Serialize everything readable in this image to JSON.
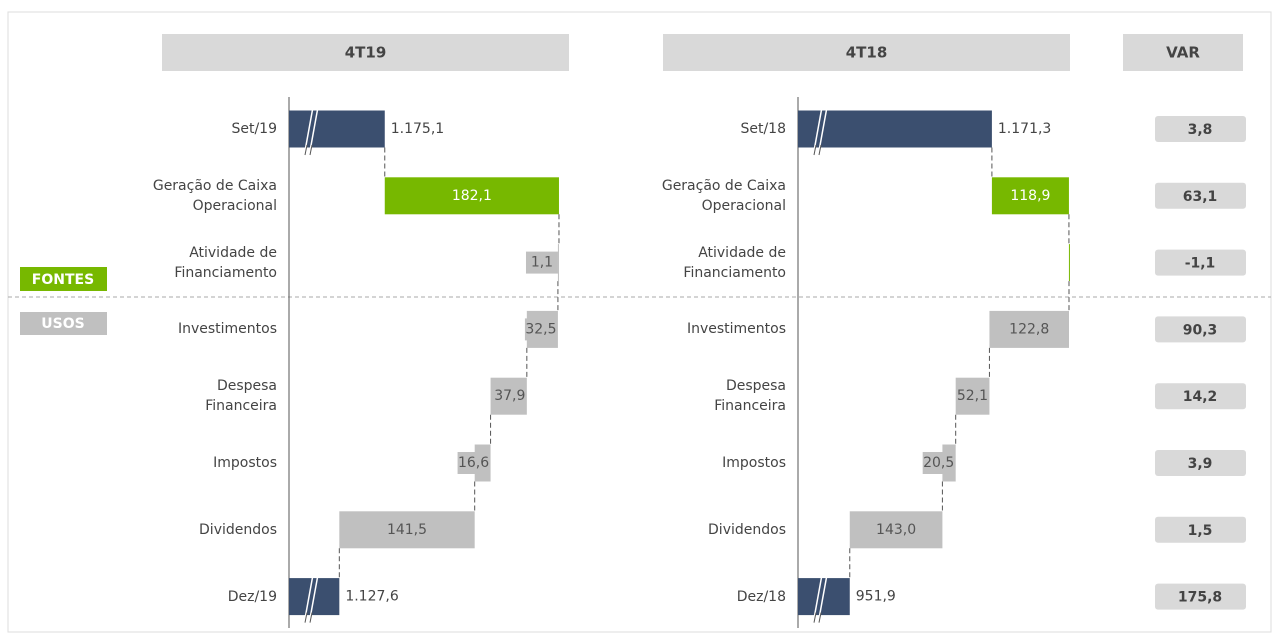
{
  "chart_data": [
    {
      "type": "waterfall",
      "title": "4T19",
      "categories": [
        "Set/19",
        "Geração de Caixa\nOperacional",
        "Atividade de\nFinanciamento",
        "Investimentos",
        "Despesa\nFinanceira",
        "Impostos",
        "Dividendos",
        "Dez/19"
      ],
      "values": [
        1175.1,
        182.1,
        1.1,
        32.5,
        37.9,
        16.6,
        141.5,
        1127.6
      ],
      "value_labels": [
        "1.175,1",
        "182,1",
        "1,1",
        "32,5",
        "37,9",
        "16,6",
        "141,5",
        "1.127,6"
      ],
      "measures": [
        "total",
        "increase",
        "decrease",
        "decrease",
        "decrease",
        "decrease",
        "decrease",
        "total"
      ],
      "colors": {
        "total": "#3b4f6f",
        "increase": "#77b800",
        "decrease": "#c0c0c0"
      },
      "xlim": [
        1075,
        1375
      ]
    },
    {
      "type": "waterfall",
      "title": "4T18",
      "categories": [
        "Set/18",
        "Geração de Caixa\nOperacional",
        "Atividade de\nFinanciamento",
        "Investimentos",
        "Despesa\nFinanceira",
        "Impostos",
        "Dividendos",
        "Dez/18"
      ],
      "values": [
        1171.3,
        118.9,
        0.1,
        122.8,
        52.1,
        20.5,
        143.0,
        951.9
      ],
      "value_labels": [
        "1.171,3",
        "118,9",
        null,
        "122,8",
        "52,1",
        "20,5",
        "143,0",
        "951,9"
      ],
      "measures": [
        "total",
        "increase",
        "increase",
        "decrease",
        "decrease",
        "decrease",
        "decrease",
        "total"
      ],
      "colors": {
        "total": "#3b4f6f",
        "increase": "#77b800",
        "decrease": "#c0c0c0"
      },
      "xlim": [
        872,
        1315
      ]
    }
  ],
  "var": {
    "title": "VAR",
    "rows": [
      "3,8",
      "63,1",
      "-1,1",
      "90,3",
      "14,2",
      "3,9",
      "1,5",
      "175,8"
    ]
  },
  "groups": {
    "sources": "FONTES",
    "uses": "USOS"
  }
}
